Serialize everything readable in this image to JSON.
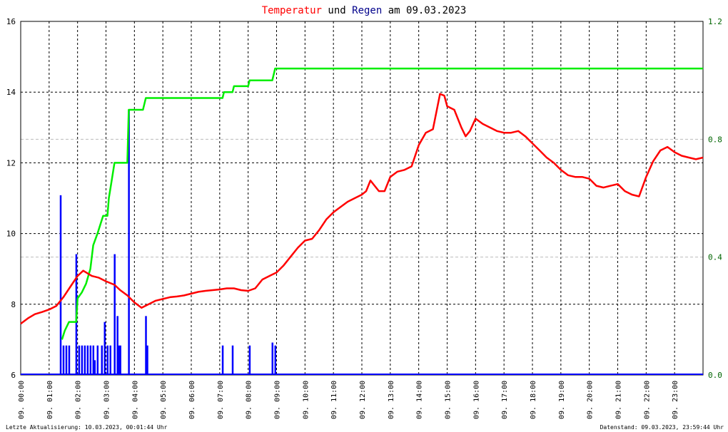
{
  "chart_data": {
    "type": "line",
    "title_parts": [
      {
        "text": "Temperatur",
        "color": "#ff0000"
      },
      {
        "text": " und ",
        "color": "#000000"
      },
      {
        "text": "Regen",
        "color": "#00008b"
      },
      {
        "text": " am 09.03.2023",
        "color": "#000000"
      }
    ],
    "colors": {
      "temperature": "#ff0000",
      "cumulative_rain": "#00ee00",
      "rain_bars": "#0000ff",
      "axis_left": "#000000",
      "axis_right": "#006400",
      "grid": "#000000",
      "grid_minor": "#bbbbbb"
    },
    "x_range": [
      0,
      24
    ],
    "x_tick_labels": [
      "09. 00:00",
      "09. 01:00",
      "09. 02:00",
      "09. 03:00",
      "09. 04:00",
      "09. 05:00",
      "09. 06:00",
      "09. 07:00",
      "09. 08:00",
      "09. 09:00",
      "09. 10:00",
      "09. 11:00",
      "09. 12:00",
      "09. 13:00",
      "09. 14:00",
      "09. 15:00",
      "09. 16:00",
      "09. 17:00",
      "09. 18:00",
      "09. 19:00",
      "09. 20:00",
      "09. 21:00",
      "09. 22:00",
      "09. 23:00"
    ],
    "y_left_range": [
      6,
      16
    ],
    "y_left_ticks": [
      "6",
      "8",
      "10",
      "12",
      "14",
      "16"
    ],
    "y_right_range": [
      0.0,
      1.2
    ],
    "y_right_ticks": [
      "0.0",
      "0.4",
      "0.8",
      "1.2"
    ],
    "temperature": [
      [
        0.0,
        7.45
      ],
      [
        0.25,
        7.6
      ],
      [
        0.5,
        7.72
      ],
      [
        0.75,
        7.78
      ],
      [
        1.0,
        7.85
      ],
      [
        1.25,
        7.95
      ],
      [
        1.5,
        8.2
      ],
      [
        1.75,
        8.5
      ],
      [
        2.0,
        8.8
      ],
      [
        2.2,
        8.95
      ],
      [
        2.5,
        8.8
      ],
      [
        2.75,
        8.75
      ],
      [
        3.0,
        8.65
      ],
      [
        3.3,
        8.55
      ],
      [
        3.5,
        8.4
      ],
      [
        3.75,
        8.25
      ],
      [
        4.0,
        8.05
      ],
      [
        4.25,
        7.9
      ],
      [
        4.5,
        8.0
      ],
      [
        4.75,
        8.1
      ],
      [
        5.0,
        8.15
      ],
      [
        5.25,
        8.2
      ],
      [
        5.5,
        8.22
      ],
      [
        5.75,
        8.25
      ],
      [
        6.0,
        8.3
      ],
      [
        6.25,
        8.35
      ],
      [
        6.5,
        8.38
      ],
      [
        6.75,
        8.4
      ],
      [
        7.0,
        8.42
      ],
      [
        7.25,
        8.45
      ],
      [
        7.5,
        8.45
      ],
      [
        7.75,
        8.4
      ],
      [
        8.0,
        8.38
      ],
      [
        8.25,
        8.45
      ],
      [
        8.5,
        8.7
      ],
      [
        8.75,
        8.8
      ],
      [
        9.0,
        8.9
      ],
      [
        9.25,
        9.1
      ],
      [
        9.5,
        9.35
      ],
      [
        9.75,
        9.6
      ],
      [
        10.0,
        9.8
      ],
      [
        10.25,
        9.85
      ],
      [
        10.5,
        10.1
      ],
      [
        10.75,
        10.4
      ],
      [
        11.0,
        10.6
      ],
      [
        11.25,
        10.75
      ],
      [
        11.5,
        10.9
      ],
      [
        11.75,
        11.0
      ],
      [
        12.0,
        11.1
      ],
      [
        12.15,
        11.2
      ],
      [
        12.3,
        11.5
      ],
      [
        12.45,
        11.35
      ],
      [
        12.6,
        11.2
      ],
      [
        12.8,
        11.2
      ],
      [
        13.0,
        11.6
      ],
      [
        13.25,
        11.75
      ],
      [
        13.5,
        11.8
      ],
      [
        13.75,
        11.9
      ],
      [
        14.0,
        12.5
      ],
      [
        14.25,
        12.85
      ],
      [
        14.5,
        12.95
      ],
      [
        14.75,
        13.95
      ],
      [
        14.9,
        13.9
      ],
      [
        15.0,
        13.6
      ],
      [
        15.25,
        13.5
      ],
      [
        15.5,
        13.0
      ],
      [
        15.65,
        12.75
      ],
      [
        15.8,
        12.9
      ],
      [
        16.0,
        13.25
      ],
      [
        16.25,
        13.1
      ],
      [
        16.5,
        13.0
      ],
      [
        16.75,
        12.9
      ],
      [
        17.0,
        12.85
      ],
      [
        17.25,
        12.85
      ],
      [
        17.5,
        12.9
      ],
      [
        17.75,
        12.75
      ],
      [
        18.0,
        12.55
      ],
      [
        18.25,
        12.35
      ],
      [
        18.5,
        12.15
      ],
      [
        18.75,
        12.0
      ],
      [
        19.0,
        11.8
      ],
      [
        19.25,
        11.65
      ],
      [
        19.5,
        11.6
      ],
      [
        19.75,
        11.6
      ],
      [
        20.0,
        11.55
      ],
      [
        20.25,
        11.35
      ],
      [
        20.5,
        11.3
      ],
      [
        20.75,
        11.35
      ],
      [
        21.0,
        11.4
      ],
      [
        21.25,
        11.2
      ],
      [
        21.5,
        11.1
      ],
      [
        21.75,
        11.05
      ],
      [
        22.0,
        11.6
      ],
      [
        22.25,
        12.05
      ],
      [
        22.5,
        12.35
      ],
      [
        22.75,
        12.45
      ],
      [
        23.0,
        12.3
      ],
      [
        23.25,
        12.2
      ],
      [
        23.5,
        12.15
      ],
      [
        23.75,
        12.1
      ],
      [
        24.0,
        12.15
      ]
    ],
    "cumulative_rain": [
      [
        1.45,
        0.12
      ],
      [
        1.55,
        0.15
      ],
      [
        1.7,
        0.18
      ],
      [
        1.95,
        0.18
      ],
      [
        2.0,
        0.26
      ],
      [
        2.15,
        0.28
      ],
      [
        2.3,
        0.31
      ],
      [
        2.45,
        0.36
      ],
      [
        2.55,
        0.44
      ],
      [
        2.7,
        0.48
      ],
      [
        2.8,
        0.51
      ],
      [
        2.9,
        0.54
      ],
      [
        3.05,
        0.54
      ],
      [
        3.1,
        0.6
      ],
      [
        3.2,
        0.66
      ],
      [
        3.3,
        0.72
      ],
      [
        3.75,
        0.72
      ],
      [
        3.8,
        0.9
      ],
      [
        4.3,
        0.9
      ],
      [
        4.4,
        0.94
      ],
      [
        7.1,
        0.94
      ],
      [
        7.15,
        0.96
      ],
      [
        7.45,
        0.96
      ],
      [
        7.5,
        0.98
      ],
      [
        8.0,
        0.98
      ],
      [
        8.05,
        1.0
      ],
      [
        8.85,
        1.0
      ],
      [
        8.9,
        1.02
      ],
      [
        8.95,
        1.04
      ],
      [
        24.0,
        1.04
      ]
    ],
    "rain_bars": [
      [
        1.4,
        0.61
      ],
      [
        1.5,
        0.1
      ],
      [
        1.6,
        0.1
      ],
      [
        1.7,
        0.1
      ],
      [
        1.95,
        0.41
      ],
      [
        2.05,
        0.1
      ],
      [
        2.15,
        0.1
      ],
      [
        2.25,
        0.1
      ],
      [
        2.35,
        0.1
      ],
      [
        2.45,
        0.1
      ],
      [
        2.55,
        0.1
      ],
      [
        2.6,
        0.05
      ],
      [
        2.7,
        0.1
      ],
      [
        2.85,
        0.1
      ],
      [
        2.95,
        0.18
      ],
      [
        3.05,
        0.1
      ],
      [
        3.15,
        0.1
      ],
      [
        3.3,
        0.41
      ],
      [
        3.4,
        0.2
      ],
      [
        3.45,
        0.1
      ],
      [
        3.5,
        0.1
      ],
      [
        3.8,
        0.9
      ],
      [
        4.4,
        0.2
      ],
      [
        4.45,
        0.1
      ],
      [
        7.1,
        0.1
      ],
      [
        7.45,
        0.1
      ],
      [
        8.05,
        0.1
      ],
      [
        8.85,
        0.11
      ],
      [
        8.95,
        0.1
      ]
    ],
    "footer_left": "Letzte Aktualisierung: 10.03.2023, 00:01:44 Uhr",
    "footer_right": "Datenstand: 09.03.2023, 23:59:44 Uhr"
  }
}
